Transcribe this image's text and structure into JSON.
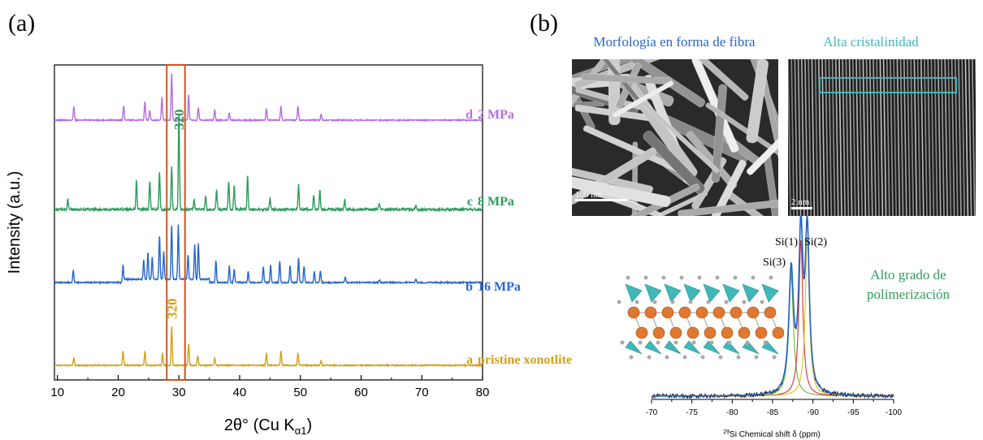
{
  "panel_a_label": "(a)",
  "panel_b_label": "(b)",
  "colors": {
    "d": "#b46ee0",
    "c": "#2e9c5c",
    "b": "#2466cc",
    "a": "#d4a017",
    "box": "#d2541e",
    "teal": "#40b8b8",
    "fit_green": "#6bb83a",
    "fit_red": "#d43030",
    "fit_yellow": "#e0c020"
  },
  "chart_data": [
    {
      "type": "line",
      "xlabel": "2θ° (Cu K",
      "xlabel_sub": "α1",
      "xlabel_end": ")",
      "ylabel": "Intensity (a.u.)",
      "xlim": [
        9.5,
        80
      ],
      "xticks": [
        "10",
        "20",
        "30",
        "40",
        "50",
        "60",
        "70",
        "80"
      ],
      "highlight_box": [
        28,
        31
      ],
      "series": [
        {
          "id": "d",
          "letter": "d",
          "name": "2 MPa",
          "peaks": [
            [
              12.7,
              0.3
            ],
            [
              20.9,
              0.3
            ],
            [
              24.4,
              0.4
            ],
            [
              25.2,
              0.2
            ],
            [
              27.2,
              0.5
            ],
            [
              28.8,
              1.0
            ],
            [
              31.6,
              0.55
            ],
            [
              33.2,
              0.28
            ],
            [
              35.9,
              0.22
            ],
            [
              38.3,
              0.15
            ],
            [
              44.4,
              0.25
            ],
            [
              46.8,
              0.3
            ],
            [
              49.6,
              0.3
            ],
            [
              53.4,
              0.12
            ]
          ]
        },
        {
          "id": "c",
          "letter": "c",
          "name": "8 MPa",
          "peak_label": "320",
          "peaks": [
            [
              11.7,
              0.1
            ],
            [
              23.0,
              0.3
            ],
            [
              25.2,
              0.3
            ],
            [
              26.8,
              0.38
            ],
            [
              28.8,
              0.45
            ],
            [
              30.0,
              1.0
            ],
            [
              32.5,
              0.1
            ],
            [
              34.4,
              0.15
            ],
            [
              36.2,
              0.2
            ],
            [
              38.2,
              0.3
            ],
            [
              39.1,
              0.25
            ],
            [
              41.3,
              0.35
            ],
            [
              45.0,
              0.12
            ],
            [
              49.7,
              0.25
            ],
            [
              52.2,
              0.15
            ],
            [
              53.2,
              0.2
            ],
            [
              57.3,
              0.1
            ],
            [
              63.0,
              0.06
            ],
            [
              69.0,
              0.05
            ]
          ]
        },
        {
          "id": "b",
          "letter": "b",
          "name": "16 MPa",
          "peaks": [
            [
              12.6,
              0.22
            ],
            [
              20.8,
              0.32
            ],
            [
              24.2,
              0.35
            ],
            [
              24.9,
              0.5
            ],
            [
              25.6,
              0.42
            ],
            [
              26.8,
              0.8
            ],
            [
              27.5,
              0.5
            ],
            [
              28.8,
              1.0
            ],
            [
              29.9,
              1.0
            ],
            [
              31.5,
              0.45
            ],
            [
              32.6,
              0.62
            ],
            [
              33.2,
              0.65
            ],
            [
              36.1,
              0.4
            ],
            [
              38.3,
              0.3
            ],
            [
              39.1,
              0.25
            ],
            [
              41.4,
              0.2
            ],
            [
              43.9,
              0.3
            ],
            [
              45.1,
              0.32
            ],
            [
              46.6,
              0.4
            ],
            [
              48.3,
              0.3
            ],
            [
              49.7,
              0.45
            ],
            [
              50.6,
              0.3
            ],
            [
              52.3,
              0.2
            ],
            [
              53.3,
              0.22
            ],
            [
              57.4,
              0.1
            ],
            [
              63.0,
              0.05
            ],
            [
              69.0,
              0.06
            ]
          ]
        },
        {
          "id": "a",
          "letter": "a",
          "name": "pristine xonotlite",
          "peak_label": "320",
          "peaks": [
            [
              12.7,
              0.15
            ],
            [
              20.8,
              0.3
            ],
            [
              24.4,
              0.3
            ],
            [
              27.3,
              0.25
            ],
            [
              28.8,
              0.8
            ],
            [
              31.6,
              0.45
            ],
            [
              33.1,
              0.2
            ],
            [
              35.9,
              0.15
            ],
            [
              44.4,
              0.25
            ],
            [
              46.8,
              0.3
            ],
            [
              49.6,
              0.25
            ],
            [
              53.4,
              0.1
            ]
          ]
        }
      ]
    },
    {
      "type": "line",
      "xlabel_sup": "29",
      "xlabel": "Si Chemical shift δ (ppm)",
      "xlim": [
        -70,
        -100
      ],
      "xticks": [
        "-70",
        "-75",
        "-80",
        "-85",
        "-90",
        "-95",
        "-100"
      ],
      "peak_labels": [
        "Si(1)",
        "Si(2)",
        "Si(3)"
      ],
      "peak_positions": [
        -88.5,
        -89.3,
        -87.3
      ],
      "annotation": "Alto grado de polimerización"
    }
  ],
  "images": {
    "sem_title": "Morfología en forma de fibra",
    "sem_scale": "100 nm",
    "tem_title": "Alta cristalinidad",
    "tem_scale": "2 nm"
  }
}
